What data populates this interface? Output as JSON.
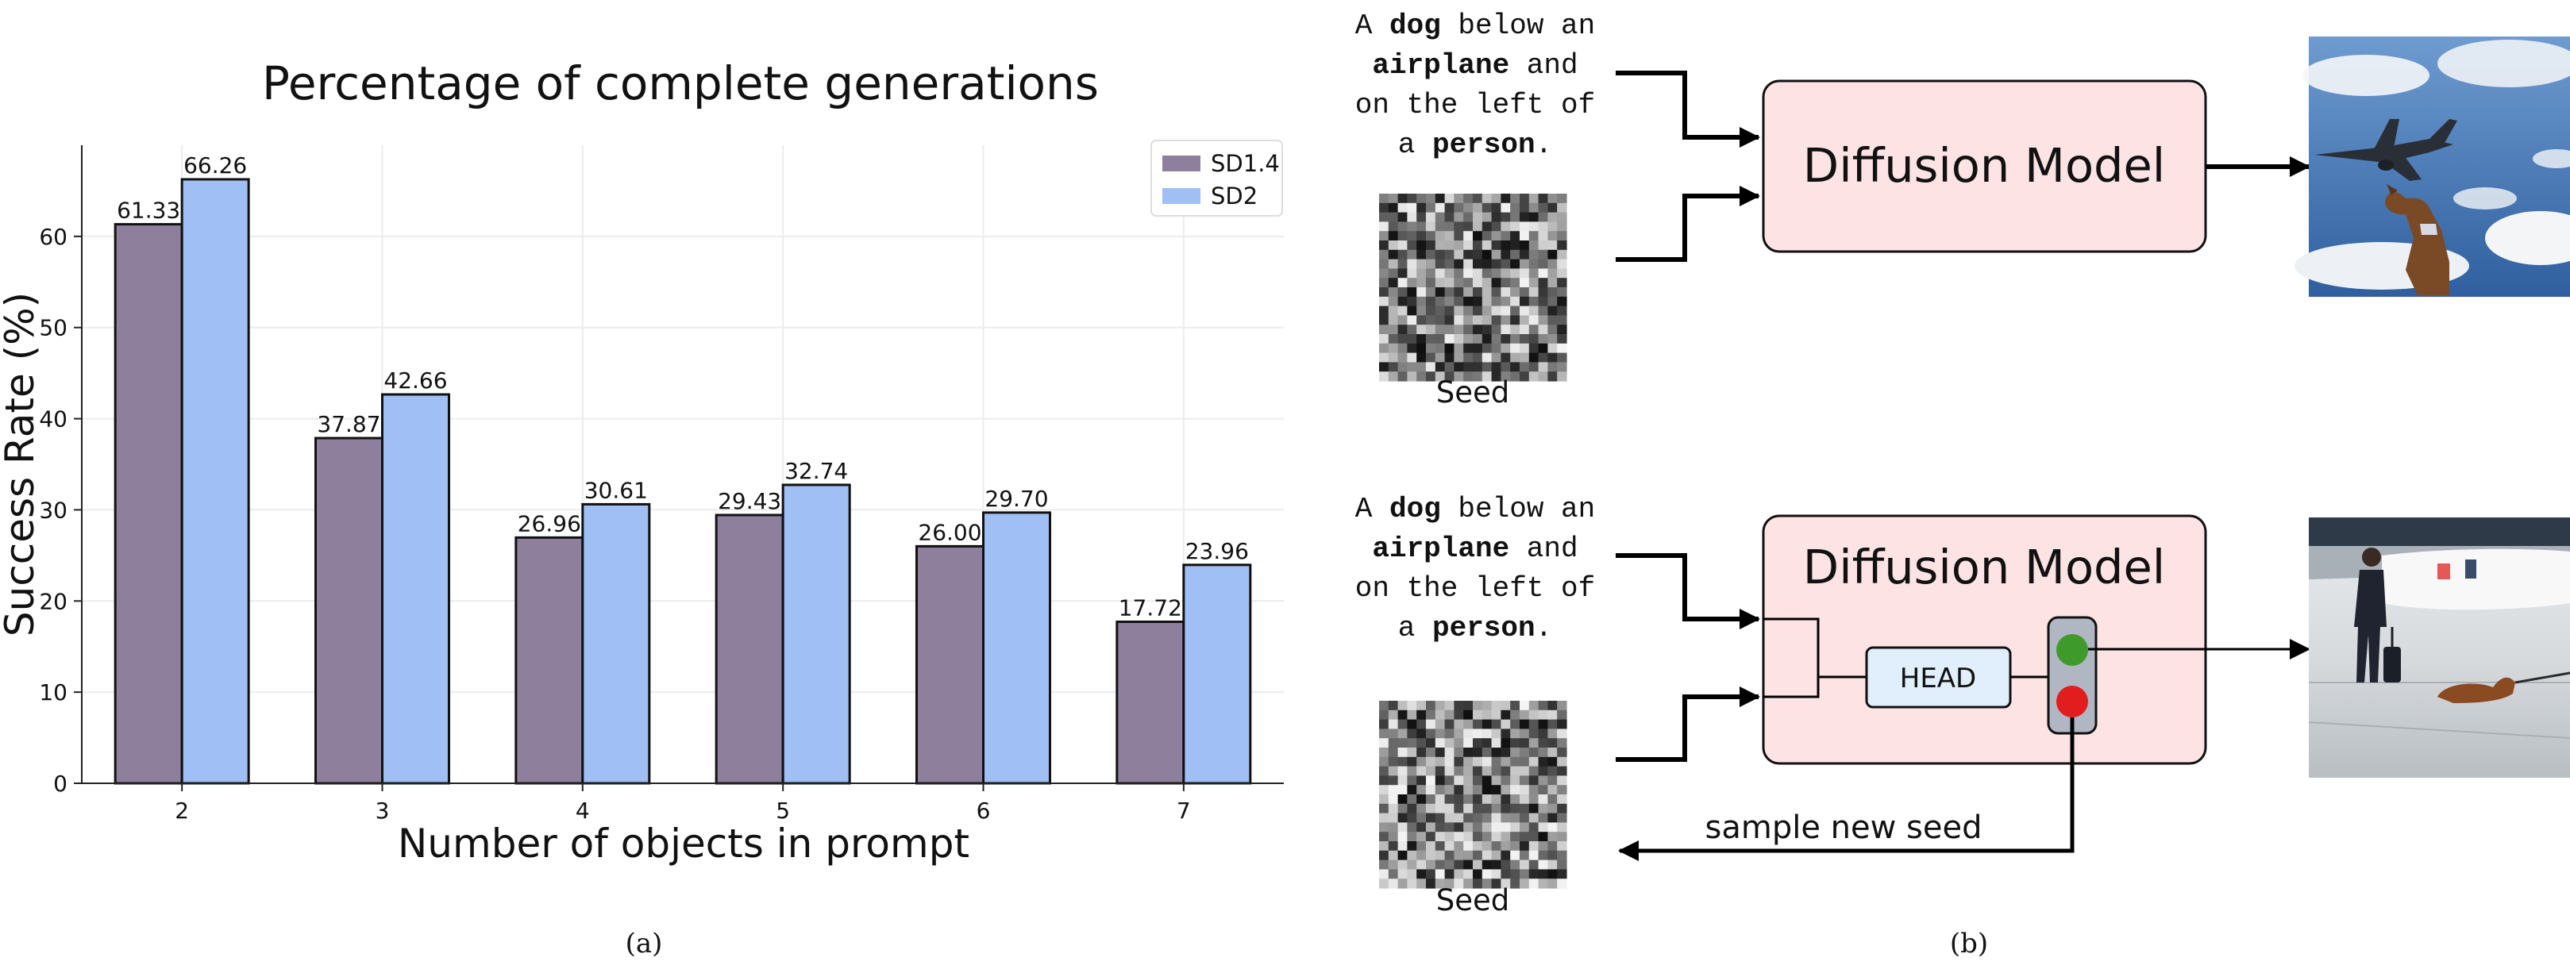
{
  "chart_data": {
    "type": "bar",
    "title": "Percentage of complete generations",
    "xlabel": "Number of objects in prompt",
    "ylabel": "Success Rate (%)",
    "categories": [
      "2",
      "3",
      "4",
      "5",
      "6",
      "7"
    ],
    "series": [
      {
        "name": "SD1.4",
        "color": "#8e7f9c",
        "values": [
          61.33,
          37.87,
          26.96,
          29.43,
          26.0,
          17.72
        ],
        "labels": [
          "61.33",
          "37.87",
          "26.96",
          "29.43",
          "26.00",
          "17.72"
        ]
      },
      {
        "name": "SD2",
        "color": "#9fbff5",
        "values": [
          66.26,
          42.66,
          30.61,
          32.74,
          29.7,
          23.96
        ],
        "labels": [
          "66.26",
          "42.66",
          "30.61",
          "32.74",
          "29.70",
          "23.96"
        ]
      }
    ],
    "ylim": [
      0,
      70
    ],
    "yticks": [
      "0",
      "10",
      "20",
      "30",
      "40",
      "50",
      "60"
    ],
    "grid": true,
    "legend": "top-right"
  },
  "captions": {
    "a": "(a)",
    "b": "(b)"
  },
  "diagram": {
    "prompt_lines": [
      [
        {
          "t": "A ",
          "b": false
        },
        {
          "t": "dog",
          "b": true
        },
        {
          "t": " below an",
          "b": false
        }
      ],
      [
        {
          "t": "airplane",
          "b": true
        },
        {
          "t": " and",
          "b": false
        }
      ],
      [
        {
          "t": "on the left of",
          "b": false
        }
      ],
      [
        {
          "t": "a ",
          "b": false
        },
        {
          "t": "person",
          "b": true
        },
        {
          "t": ".",
          "b": false
        }
      ]
    ],
    "model_label": "Diffusion Model",
    "seed_label": "Seed",
    "head_label": "HEAD",
    "resample_label": "sample new seed",
    "colors": {
      "model_box": "#fde3e4",
      "head_box": "#e1effc",
      "light_box": "#b1b6c3",
      "green": "#3f9a2c",
      "red": "#e11d1d"
    }
  }
}
